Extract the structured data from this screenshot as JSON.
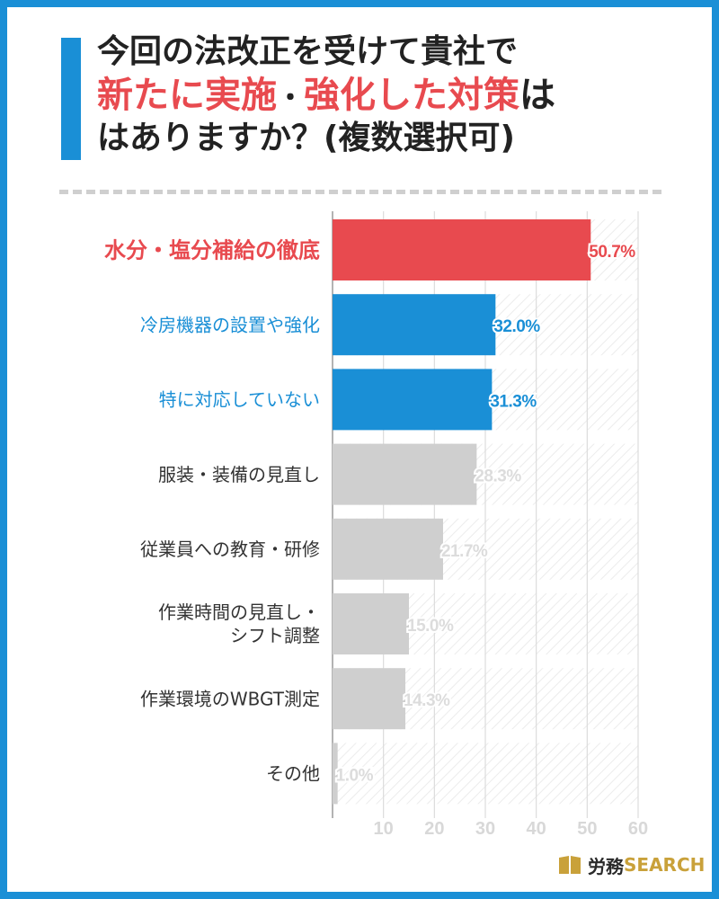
{
  "title": {
    "line1": "今回の法改正を受けて貴社で",
    "line2_highlight_a": "新たに実施",
    "line2_dot": "・",
    "line2_highlight_b": "強化した対策",
    "line2_suffix": "は",
    "line3": "はありますか？(複数選択可)"
  },
  "colors": {
    "frame": "#1a8fd6",
    "highlight": "#e84a4f",
    "top_bar": "#e84a4f",
    "blue_bar": "#1a8fd6",
    "gray_bar": "#cfcfcf",
    "gray_label": "#dcdcdc"
  },
  "chart_data": {
    "type": "bar",
    "orientation": "horizontal",
    "categories": [
      "水分・塩分補給の徹底",
      "冷房機器の設置や強化",
      "特に対応していない",
      "服装・装備の見直し",
      "従業員への教育・研修",
      "作業時間の見直し・\nシフト調整",
      "作業環境のWBGT測定",
      "その他"
    ],
    "values": [
      50.7,
      32.0,
      31.3,
      28.3,
      21.7,
      15.0,
      14.3,
      1.0
    ],
    "value_labels": [
      "50.7%",
      "32.0%",
      "31.3%",
      "28.3%",
      "21.7%",
      "15.0%",
      "14.3%",
      "1.0%"
    ],
    "bar_colors": [
      "#e84a4f",
      "#1a8fd6",
      "#1a8fd6",
      "#cfcfcf",
      "#cfcfcf",
      "#cfcfcf",
      "#cfcfcf",
      "#cfcfcf"
    ],
    "label_colors": [
      "#e84a4f",
      "#1a8fd6",
      "#1a8fd6",
      "#333333",
      "#333333",
      "#333333",
      "#333333",
      "#333333"
    ],
    "value_label_colors": [
      "#e84a4f",
      "#1a8fd6",
      "#1a8fd6",
      "#dcdcdc",
      "#dcdcdc",
      "#dcdcdc",
      "#dcdcdc",
      "#dcdcdc"
    ],
    "x_ticks": [
      10,
      20,
      30,
      40,
      50,
      60
    ],
    "xlim": [
      0,
      60
    ],
    "title": "",
    "xlabel": "",
    "ylabel": "",
    "grid": true,
    "legend": false
  },
  "logo": {
    "text_ja": "労務",
    "text_en": "SEARCH"
  }
}
